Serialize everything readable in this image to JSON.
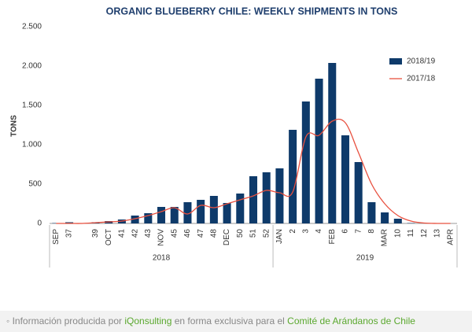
{
  "chart_data": {
    "type": "bar_line",
    "title": "ORGANIC BLUEBERRY CHILE: WEEKLY SHIPMENTS IN TONS",
    "y_label": "TONS",
    "categories": [
      "SEP",
      "37",
      null,
      "39",
      "OCT",
      "41",
      "42",
      "43",
      "NOV",
      "45",
      "46",
      "47",
      "48",
      "DEC",
      "50",
      "51",
      "52",
      "JAN",
      "2",
      "3",
      "4",
      "FEB",
      "6",
      "7",
      "8",
      "MAR",
      "10",
      "11",
      "12",
      "13",
      "APR"
    ],
    "x_groups": [
      "2018",
      "2019"
    ],
    "series": [
      {
        "name": "2018/19",
        "color": "#0e3a6a",
        "kind": "bar",
        "values": [
          5,
          15,
          5,
          15,
          30,
          50,
          100,
          130,
          210,
          210,
          270,
          300,
          350,
          260,
          380,
          600,
          650,
          700,
          1190,
          1550,
          1840,
          2040,
          1120,
          780,
          270,
          140,
          60,
          5,
          0,
          0,
          0
        ]
      },
      {
        "name": "2017/18",
        "color": "#e8503f",
        "kind": "line",
        "values": [
          0,
          0,
          0,
          10,
          20,
          30,
          60,
          100,
          150,
          200,
          120,
          230,
          200,
          250,
          300,
          350,
          420,
          390,
          400,
          1100,
          1120,
          1300,
          1280,
          900,
          500,
          250,
          100,
          30,
          5,
          0,
          0
        ]
      }
    ],
    "ylim": [
      0,
      2500
    ],
    "yticks": [
      0,
      500,
      {
        "value": 1000,
        "label": "1.000"
      },
      {
        "value": 1500,
        "label": "1.500"
      },
      {
        "value": 2000,
        "label": "2.000"
      },
      {
        "value": 2500,
        "label": "2.500"
      }
    ],
    "legend": "top-right"
  },
  "footer": {
    "text_1": "Información producida por",
    "link_1": "iQonsulting",
    "text_2": "en forma exclusiva para el",
    "link_2": "Comité de Arándanos de Chile"
  }
}
